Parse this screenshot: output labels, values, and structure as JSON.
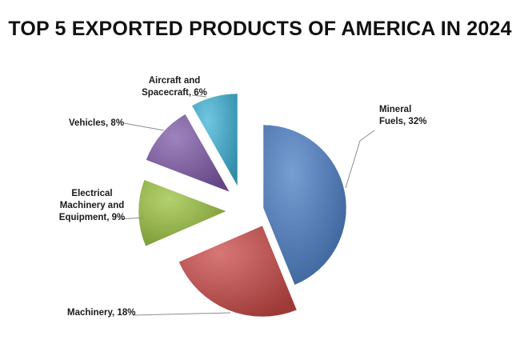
{
  "chart_data": {
    "type": "pie",
    "title": "TOP 5 EXPORTED PRODUCTS OF AMERICA IN 2024",
    "slices": [
      {
        "label": "Mineral Fuels",
        "value": 32,
        "display": [
          "Mineral",
          "Fuels, 32%"
        ],
        "color": "#4a7ec4"
      },
      {
        "label": "Machinery",
        "value": 18,
        "display": [
          "Machinery, 18%"
        ],
        "color": "#c94a48"
      },
      {
        "label": "Electrical Machinery and Equipment",
        "value": 9,
        "display": [
          "Electrical",
          "Machinery and",
          "Equipment, 9%"
        ],
        "color": "#9bc23f"
      },
      {
        "label": "Vehicles",
        "value": 8,
        "display": [
          "Vehicles, 8%"
        ],
        "color": "#7f5aa8"
      },
      {
        "label": "Aircraft and Spacecraft",
        "value": 6,
        "display": [
          "Aircraft and",
          "Spacecraft, 6%"
        ],
        "color": "#3fb3d6"
      }
    ],
    "legend": "none",
    "label_style": "outside with leader lines"
  }
}
